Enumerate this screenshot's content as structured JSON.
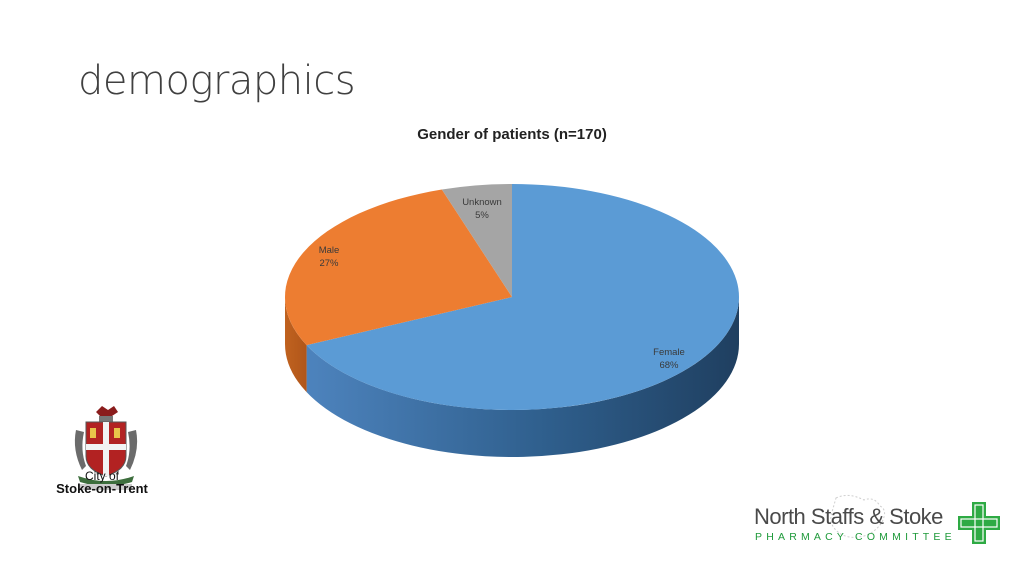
{
  "slide": {
    "title": "demographics"
  },
  "chart_data": {
    "type": "pie",
    "title": "Gender of patients (n=170)",
    "categories": [
      "Female",
      "Male",
      "Unknown"
    ],
    "values": [
      68,
      27,
      5
    ],
    "labels": [
      "68%",
      "27%",
      "5%"
    ],
    "colors": [
      "#5b9bd5",
      "#ed7d31",
      "#a5a5a5"
    ],
    "legend": "none",
    "style": "3d"
  },
  "logos": {
    "city": {
      "line1": "City of",
      "line2": "Stoke-on-Trent",
      "icon": "coat-of-arms-icon"
    },
    "committee": {
      "name": "North Staffs & Stoke",
      "subtitle": "PHARMACY COMMITTEE",
      "icon": "pharmacy-cross-icon",
      "color": "#2eaa44"
    }
  }
}
